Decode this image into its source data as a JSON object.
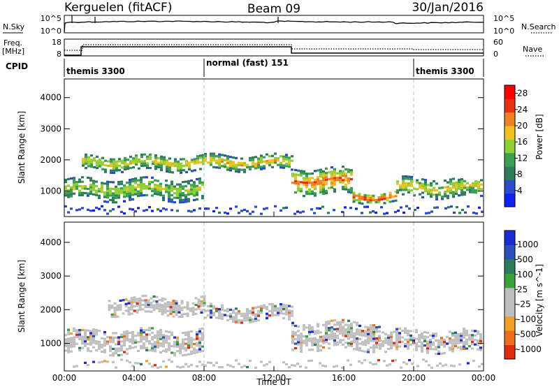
{
  "header": {
    "station": "Kerguelen (fitACF)",
    "beam": "Beam 09",
    "date": "30/Jan/2016"
  },
  "top_panels": {
    "nsky_label": "N.Sky",
    "nsearch_label": "N.Search",
    "nsky_ticks": [
      "10^5",
      "10^0"
    ],
    "nsearch_ticks": [
      "10^5",
      "10^0"
    ],
    "freq_label_line1": "Freq.",
    "freq_label_line2": "[MHz]",
    "freq_ticks": [
      "18",
      "8"
    ],
    "nave_label": "Nave",
    "nave_ticks": [
      "60",
      "0"
    ],
    "cpid_label": "CPID",
    "cpid_segments": [
      {
        "label": "themis 3300",
        "start_hour": 0,
        "end_hour": 8
      },
      {
        "label": "normal (fast) 151",
        "start_hour": 8,
        "end_hour": 20
      },
      {
        "label": "themis 3300",
        "start_hour": 20,
        "end_hour": 24
      }
    ]
  },
  "colors": {
    "grey_scatter": "#c0c0c0",
    "power_scale": [
      "#1020f0",
      "#2a4bd0",
      "#2e7d5a",
      "#3aa050",
      "#8fd030",
      "#f0c020",
      "#f08020",
      "#e83010",
      "#ff0000"
    ],
    "velocity_scale": [
      "#1a2cd8",
      "#2a4fb8",
      "#2e7a5c",
      "#36a23a",
      "#bdbdbd",
      "#bdbdbd",
      "#f0a028",
      "#ef6d1c",
      "#e02a10"
    ]
  },
  "chart_data": [
    {
      "type": "heatmap",
      "panel": "Power",
      "xlabel": "Time UT",
      "ylabel": "Slant Range [km]",
      "x_ticks": [
        "00:00",
        "04:00",
        "08:00",
        "12:00",
        "16:00",
        "20:00",
        "00:00"
      ],
      "xlim_hours": [
        0,
        24
      ],
      "y_ticks": [
        1000,
        2000,
        3000,
        4000
      ],
      "ylim": [
        180,
        4600
      ],
      "colorbar_label": "Power [dB]",
      "colorbar_ticks": [
        "4",
        "8",
        "12",
        "16",
        "20",
        "24",
        "28"
      ],
      "colorbar_range": [
        0,
        30
      ],
      "scatter_bands": [
        {
          "start_hour": 0.0,
          "end_hour": 8.0,
          "center_km": 1100,
          "width_km": 700,
          "mean_db": 16
        },
        {
          "start_hour": 1.0,
          "end_hour": 8.0,
          "center_km": 1950,
          "width_km": 500,
          "mean_db": 18
        },
        {
          "start_hour": 8.0,
          "end_hour": 13.0,
          "center_km": 1950,
          "width_km": 450,
          "mean_db": 20
        },
        {
          "start_hour": 13.0,
          "end_hour": 16.5,
          "center_km": 1350,
          "width_km": 800,
          "mean_db": 24
        },
        {
          "start_hour": 16.5,
          "end_hour": 19.0,
          "center_km": 850,
          "width_km": 350,
          "mean_db": 26
        },
        {
          "start_hour": 19.0,
          "end_hour": 24.0,
          "center_km": 1150,
          "width_km": 600,
          "mean_db": 18
        }
      ]
    },
    {
      "type": "heatmap",
      "panel": "Velocity",
      "xlabel": "Time UT",
      "ylabel": "Slant Range [km]",
      "x_ticks": [
        "00:00",
        "04:00",
        "08:00",
        "12:00",
        "16:00",
        "20:00",
        "00:00"
      ],
      "xlim_hours": [
        0,
        24
      ],
      "y_ticks": [
        1000,
        2000,
        3000,
        4000
      ],
      "ylim": [
        180,
        4600
      ],
      "colorbar_label": "Velocity [m s^-1]",
      "colorbar_ticks": [
        "1000",
        "500",
        "100",
        "25",
        "-25",
        "-100",
        "-500",
        "-1000"
      ],
      "scatter_bands": [
        {
          "start_hour": 0.0,
          "end_hour": 8.0,
          "center_km": 1100,
          "width_km": 700,
          "mean_vel": 0
        },
        {
          "start_hour": 2.5,
          "end_hour": 8.0,
          "center_km": 2150,
          "width_km": 500,
          "mean_vel": 0
        },
        {
          "start_hour": 8.0,
          "end_hour": 13.0,
          "center_km": 1950,
          "width_km": 450,
          "mean_vel": 0
        },
        {
          "start_hour": 13.0,
          "end_hour": 18.0,
          "center_km": 1250,
          "width_km": 800,
          "mean_vel": -50
        },
        {
          "start_hour": 18.0,
          "end_hour": 24.0,
          "center_km": 1100,
          "width_km": 600,
          "mean_vel": -100
        }
      ]
    }
  ]
}
